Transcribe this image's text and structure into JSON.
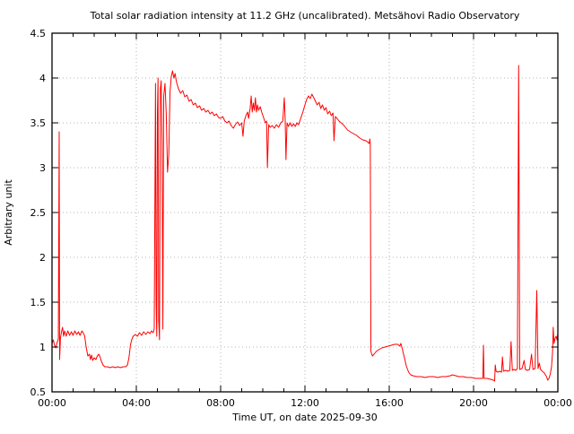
{
  "title": "Total solar radiation intensity at 11.2 GHz (uncalibrated). Metsähovi Radio Observatory",
  "axes": {
    "x_label": "Time UT, on date 2025-09-30",
    "y_label": "Arbitrary unit",
    "x_tick_hours": [
      0,
      4,
      8,
      12,
      16,
      20,
      24
    ],
    "x_tick_labels": [
      "00:00",
      "04:00",
      "08:00",
      "12:00",
      "16:00",
      "20:00",
      "00:00"
    ],
    "x_minor_step_hours": 1,
    "y_tick_values": [
      0.5,
      1,
      1.5,
      2,
      2.5,
      3,
      3.5,
      4,
      4.5
    ],
    "y_tick_labels": [
      "0.5",
      "1",
      "1.5",
      "2",
      "2.5",
      "3",
      "3.5",
      "4",
      "4.5"
    ]
  },
  "colors": {
    "line": "#ff0000",
    "grid": "#b4b4b4",
    "frame": "#000000",
    "background": "#ffffff"
  },
  "chart_data": {
    "type": "line",
    "title": "Total solar radiation intensity at 11.2 GHz (uncalibrated). Metsähovi Radio Observatory",
    "xlabel": "Time UT, on date 2025-09-30",
    "ylabel": "Arbitrary unit",
    "xlim_hours": [
      0,
      24
    ],
    "ylim": [
      0.5,
      4.5
    ],
    "grid": true,
    "legend": "none",
    "series": [
      {
        "name": "solar-flux-11.2GHz",
        "color": "#ff0000",
        "x_hours": [
          0.0,
          0.06,
          0.12,
          0.18,
          0.24,
          0.3,
          0.34,
          0.36,
          0.4,
          0.45,
          0.5,
          0.55,
          0.6,
          0.67,
          0.75,
          0.83,
          0.92,
          1.0,
          1.08,
          1.17,
          1.25,
          1.33,
          1.42,
          1.5,
          1.55,
          1.62,
          1.7,
          1.78,
          1.82,
          1.88,
          1.93,
          2.0,
          2.08,
          2.15,
          2.22,
          2.28,
          2.33,
          2.42,
          2.5,
          2.62,
          2.75,
          2.88,
          3.0,
          3.12,
          3.25,
          3.38,
          3.5,
          3.58,
          3.65,
          3.72,
          3.78,
          3.85,
          3.95,
          4.05,
          4.15,
          4.25,
          4.35,
          4.45,
          4.55,
          4.65,
          4.72,
          4.8,
          4.85,
          4.88,
          4.91,
          4.94,
          4.97,
          5.0,
          5.03,
          5.06,
          5.1,
          5.14,
          5.18,
          5.22,
          5.26,
          5.3,
          5.36,
          5.42,
          5.48,
          5.54,
          5.6,
          5.66,
          5.72,
          5.78,
          5.84,
          5.9,
          6.0,
          6.1,
          6.2,
          6.3,
          6.4,
          6.5,
          6.6,
          6.7,
          6.8,
          6.9,
          7.0,
          7.1,
          7.2,
          7.3,
          7.4,
          7.5,
          7.6,
          7.7,
          7.8,
          7.9,
          8.0,
          8.1,
          8.2,
          8.3,
          8.4,
          8.5,
          8.6,
          8.7,
          8.8,
          8.9,
          9.0,
          9.06,
          9.12,
          9.2,
          9.28,
          9.33,
          9.4,
          9.45,
          9.5,
          9.55,
          9.6,
          9.65,
          9.7,
          9.75,
          9.8,
          9.88,
          9.95,
          10.05,
          10.12,
          10.18,
          10.22,
          10.28,
          10.35,
          10.45,
          10.55,
          10.65,
          10.75,
          10.85,
          10.95,
          11.02,
          11.06,
          11.1,
          11.15,
          11.22,
          11.3,
          11.38,
          11.46,
          11.54,
          11.62,
          11.7,
          11.8,
          11.9,
          12.0,
          12.08,
          12.17,
          12.25,
          12.33,
          12.42,
          12.5,
          12.58,
          12.67,
          12.75,
          12.83,
          12.92,
          13.0,
          13.08,
          13.17,
          13.25,
          13.33,
          13.38,
          13.44,
          13.52,
          13.62,
          13.72,
          13.82,
          13.92,
          14.02,
          14.15,
          14.3,
          14.45,
          14.6,
          14.75,
          14.9,
          15.0,
          15.05,
          15.08,
          15.1,
          15.13,
          15.2,
          15.28,
          15.38,
          15.5,
          15.65,
          15.8,
          15.95,
          16.1,
          16.25,
          16.4,
          16.5,
          16.55,
          16.62,
          16.72,
          16.82,
          16.92,
          17.02,
          17.12,
          17.3,
          17.5,
          17.7,
          17.9,
          18.1,
          18.3,
          18.5,
          18.7,
          18.9,
          19.0,
          19.15,
          19.3,
          19.5,
          19.7,
          19.9,
          20.1,
          20.3,
          20.44,
          20.47,
          20.5,
          20.65,
          20.8,
          20.95,
          21.0,
          21.03,
          21.07,
          21.15,
          21.25,
          21.33,
          21.37,
          21.42,
          21.52,
          21.62,
          21.72,
          21.78,
          21.84,
          21.92,
          22.0,
          22.08,
          22.14,
          22.19,
          22.3,
          22.4,
          22.46,
          22.56,
          22.66,
          22.75,
          22.82,
          22.92,
          23.0,
          23.06,
          23.12,
          23.18,
          23.26,
          23.36,
          23.46,
          23.52,
          23.58,
          23.64,
          23.7,
          23.75,
          23.78,
          23.82,
          23.87,
          23.92,
          23.96,
          24.0
        ],
        "values": [
          1.04,
          1.08,
          1.02,
          0.99,
          1.05,
          1.09,
          3.4,
          0.86,
          1.1,
          1.17,
          1.22,
          1.12,
          1.18,
          1.12,
          1.18,
          1.13,
          1.17,
          1.13,
          1.18,
          1.14,
          1.17,
          1.13,
          1.18,
          1.15,
          1.12,
          1.0,
          0.9,
          0.92,
          0.86,
          0.91,
          0.85,
          0.88,
          0.86,
          0.9,
          0.92,
          0.89,
          0.85,
          0.8,
          0.78,
          0.78,
          0.77,
          0.78,
          0.77,
          0.78,
          0.77,
          0.78,
          0.78,
          0.8,
          0.88,
          1.02,
          1.08,
          1.12,
          1.14,
          1.12,
          1.16,
          1.13,
          1.17,
          1.14,
          1.17,
          1.15,
          1.18,
          1.16,
          1.2,
          2.6,
          3.94,
          1.5,
          1.12,
          3.6,
          4.0,
          1.3,
          1.08,
          3.88,
          3.97,
          3.3,
          1.2,
          3.8,
          3.94,
          3.6,
          2.95,
          3.15,
          3.85,
          4.02,
          4.08,
          4.0,
          4.05,
          3.96,
          3.88,
          3.83,
          3.86,
          3.79,
          3.81,
          3.74,
          3.76,
          3.7,
          3.72,
          3.67,
          3.69,
          3.64,
          3.66,
          3.62,
          3.64,
          3.6,
          3.62,
          3.58,
          3.6,
          3.56,
          3.55,
          3.57,
          3.52,
          3.5,
          3.52,
          3.47,
          3.44,
          3.48,
          3.51,
          3.47,
          3.5,
          3.35,
          3.52,
          3.58,
          3.62,
          3.55,
          3.66,
          3.8,
          3.62,
          3.72,
          3.64,
          3.78,
          3.62,
          3.7,
          3.64,
          3.68,
          3.62,
          3.55,
          3.5,
          3.52,
          3.0,
          3.48,
          3.45,
          3.47,
          3.44,
          3.48,
          3.45,
          3.5,
          3.52,
          3.78,
          3.55,
          3.09,
          3.5,
          3.46,
          3.5,
          3.46,
          3.49,
          3.46,
          3.5,
          3.48,
          3.55,
          3.62,
          3.7,
          3.76,
          3.8,
          3.77,
          3.82,
          3.78,
          3.74,
          3.7,
          3.73,
          3.66,
          3.7,
          3.64,
          3.67,
          3.6,
          3.63,
          3.58,
          3.61,
          3.3,
          3.57,
          3.55,
          3.52,
          3.5,
          3.48,
          3.45,
          3.42,
          3.4,
          3.38,
          3.36,
          3.33,
          3.31,
          3.3,
          3.28,
          3.27,
          3.32,
          3.27,
          0.95,
          0.9,
          0.92,
          0.95,
          0.97,
          0.99,
          1.0,
          1.01,
          1.02,
          1.03,
          1.03,
          1.01,
          1.04,
          0.98,
          0.88,
          0.78,
          0.72,
          0.69,
          0.68,
          0.67,
          0.67,
          0.66,
          0.67,
          0.67,
          0.66,
          0.67,
          0.67,
          0.68,
          0.69,
          0.68,
          0.67,
          0.67,
          0.66,
          0.66,
          0.65,
          0.65,
          0.65,
          1.02,
          0.65,
          0.65,
          0.64,
          0.63,
          0.62,
          0.8,
          0.73,
          0.72,
          0.73,
          0.72,
          0.89,
          0.73,
          0.74,
          0.73,
          0.74,
          1.06,
          0.74,
          0.75,
          0.74,
          0.76,
          4.14,
          0.75,
          0.76,
          0.85,
          0.75,
          0.74,
          0.75,
          0.92,
          0.75,
          0.76,
          1.63,
          0.76,
          0.82,
          0.75,
          0.73,
          0.71,
          0.67,
          0.63,
          0.65,
          0.7,
          0.78,
          0.95,
          1.22,
          1.04,
          1.1,
          1.12,
          1.08,
          1.15
        ]
      }
    ]
  }
}
